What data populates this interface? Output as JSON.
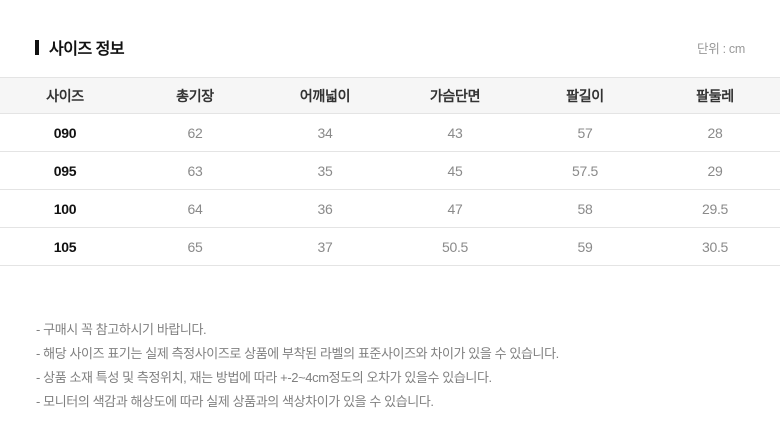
{
  "header": {
    "title": "사이즈 정보",
    "unit": "단위 : cm"
  },
  "size_table": {
    "columns": [
      "사이즈",
      "총기장",
      "어깨넓이",
      "가슴단면",
      "팔길이",
      "팔둘레"
    ],
    "rows": [
      [
        "090",
        "62",
        "34",
        "43",
        "57",
        "28"
      ],
      [
        "095",
        "63",
        "35",
        "45",
        "57.5",
        "29"
      ],
      [
        "100",
        "64",
        "36",
        "47",
        "58",
        "29.5"
      ],
      [
        "105",
        "65",
        "37",
        "50.5",
        "59",
        "30.5"
      ]
    ]
  },
  "notes": [
    "- 구매시 꼭 참고하시기 바랍니다.",
    "- 해당 사이즈 표기는 실제 측정사이즈로 상품에 부착된 라벨의 표준사이즈와 차이가 있을 수 있습니다.",
    "- 상품 소재 특성 및 측정위치, 재는 방법에 따라 +-2~4cm정도의 오차가 있을수 있습니다.",
    "- 모니터의 색감과 해상도에 따라 실제 상품과의 색상차이가 있을 수 있습니다."
  ]
}
